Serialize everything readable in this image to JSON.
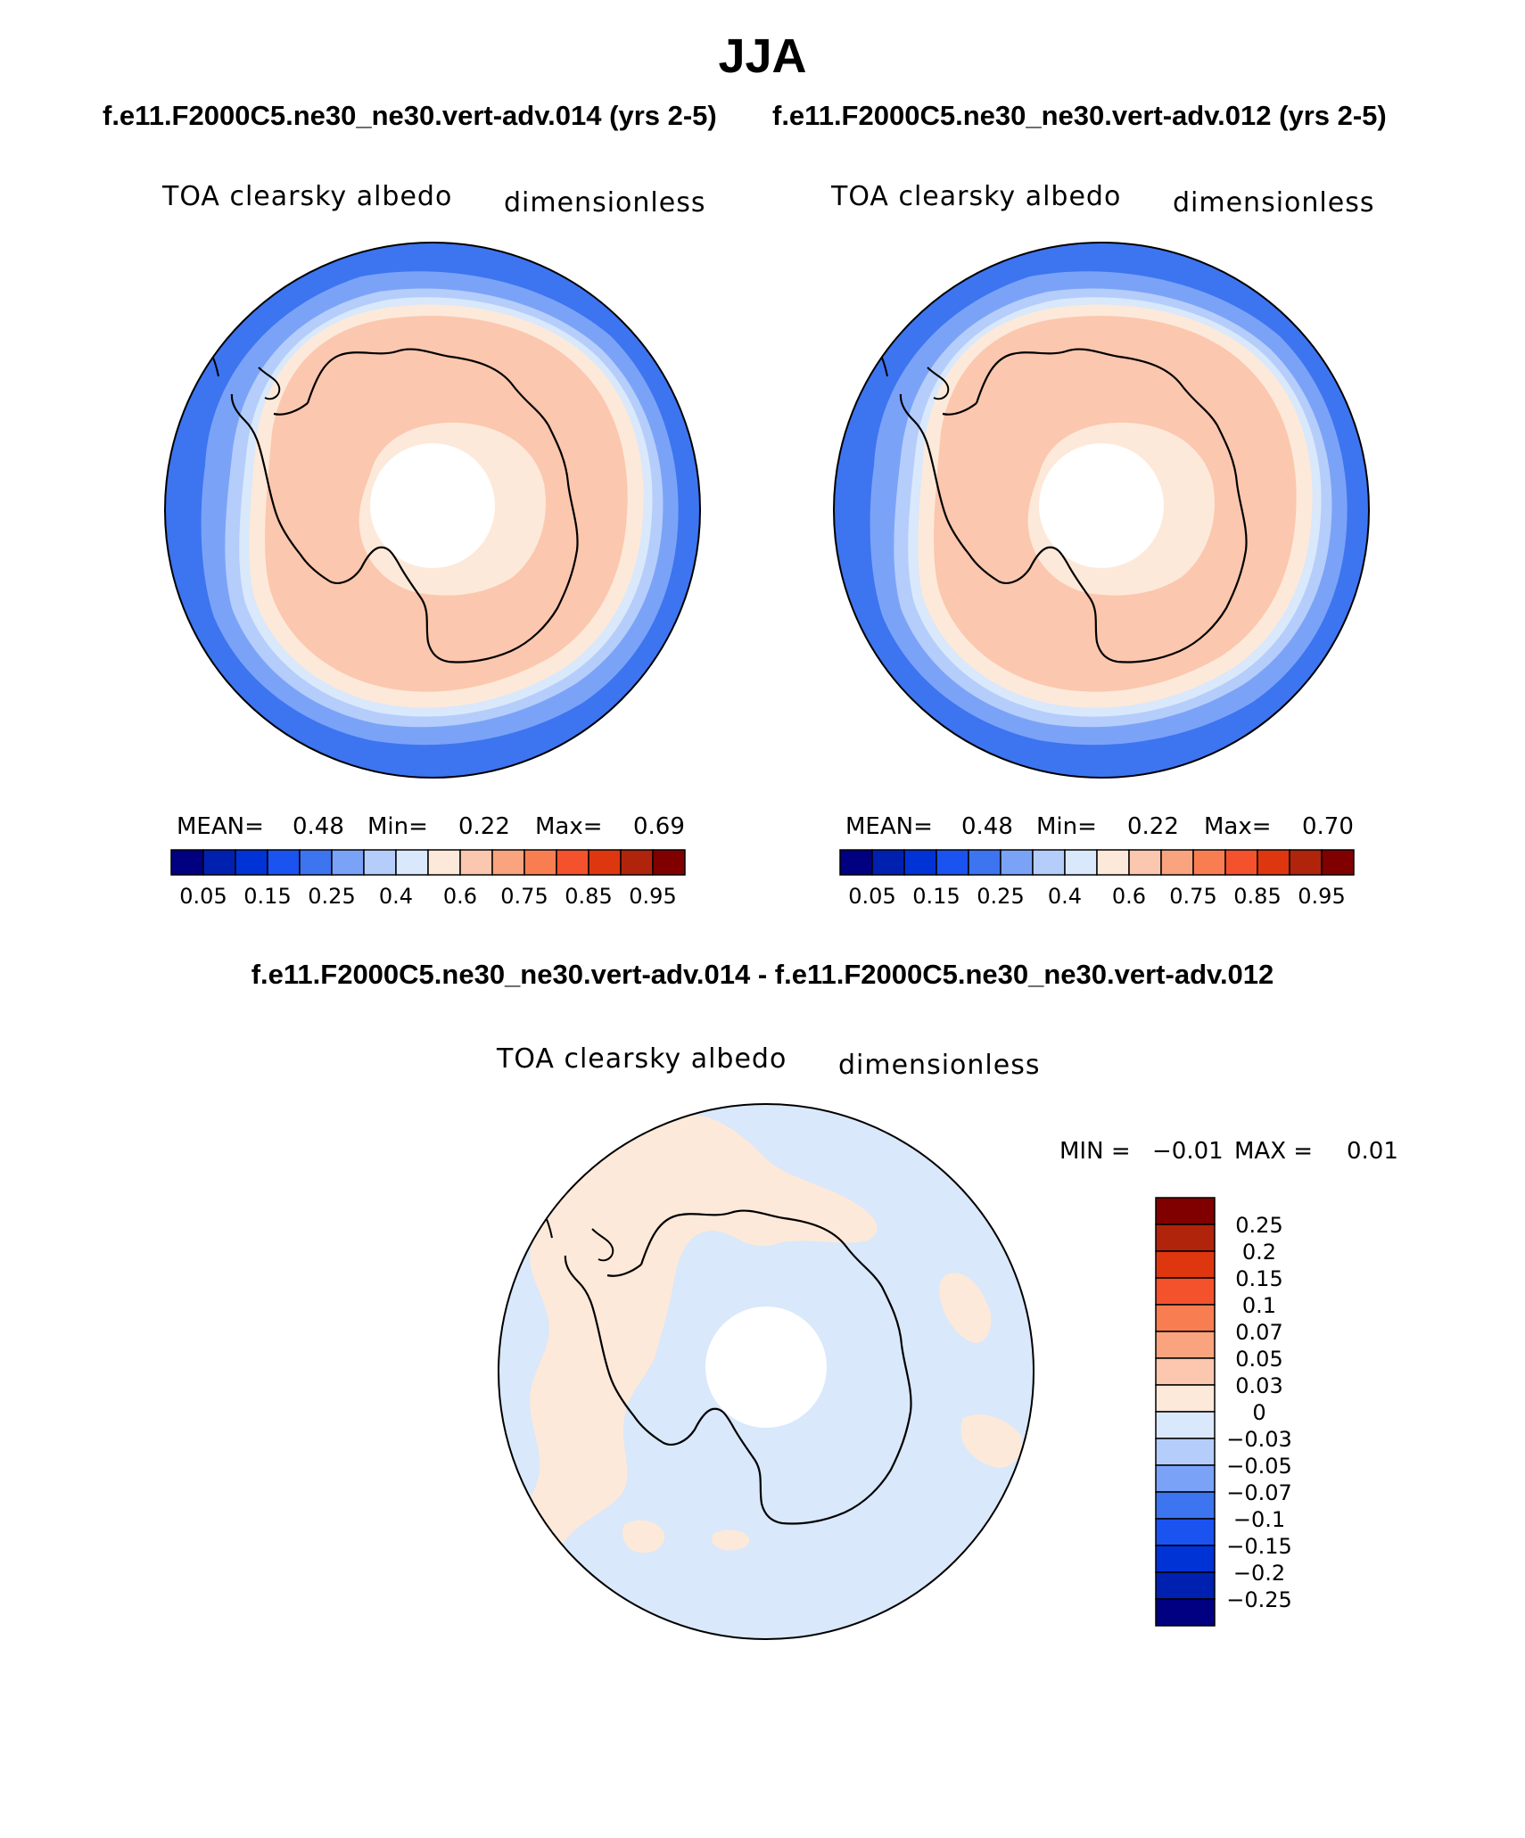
{
  "figure": {
    "season": "JJA",
    "case_left": "f.e11.F2000C5.ne30_ne30.vert-adv.014 (yrs 2-5)",
    "case_right": "f.e11.F2000C5.ne30_ne30.vert-adv.012 (yrs 2-5)",
    "diff_title": "f.e11.F2000C5.ne30_ne30.vert-adv.014 - f.e11.F2000C5.ne30_ne30.vert-adv.012"
  },
  "panels": {
    "left": {
      "variable": "TOA clearsky albedo",
      "units": "dimensionless",
      "mean_label": "MEAN=",
      "mean": "0.48",
      "min_label": "Min=",
      "min": "0.22",
      "max_label": "Max=",
      "max": "0.69"
    },
    "right": {
      "variable": "TOA clearsky albedo",
      "units": "dimensionless",
      "mean_label": "MEAN=",
      "mean": "0.48",
      "min_label": "Min=",
      "min": "0.22",
      "max_label": "Max=",
      "max": "0.70"
    },
    "diff": {
      "variable": "TOA clearsky albedo",
      "units": "dimensionless",
      "min_label": "MIN =",
      "min": "−0.01",
      "max_label": "MAX =",
      "max": "0.01"
    }
  },
  "colorbars": {
    "main": {
      "colors": [
        "#000080",
        "#0021b0",
        "#0033d6",
        "#1a53f0",
        "#3d74f0",
        "#7aa3f8",
        "#b5cdfa",
        "#d9e8fb",
        "#fde9d9",
        "#fbc7ae",
        "#f9a47f",
        "#f87e52",
        "#f3522d",
        "#de3710",
        "#b0240b",
        "#800000"
      ],
      "labels": [
        "0.05",
        "0.15",
        "0.25",
        "0.4",
        "0.6",
        "0.75",
        "0.85",
        "0.95"
      ]
    },
    "diff": {
      "colors_top_to_bottom": [
        "#800000",
        "#b0240b",
        "#de3710",
        "#f3522d",
        "#f87e52",
        "#f9a47f",
        "#fbc7ae",
        "#fde9d9",
        "#d9e8fb",
        "#b5cdfa",
        "#7aa3f8",
        "#3d74f0",
        "#1a53f0",
        "#0033d6",
        "#0021b0",
        "#000080"
      ],
      "labels_top_to_bottom": [
        "0.25",
        "0.2",
        "0.15",
        "0.1",
        "0.07",
        "0.05",
        "0.03",
        "0",
        "−0.03",
        "−0.05",
        "−0.07",
        "−0.1",
        "−0.15",
        "−0.2",
        "−0.25"
      ]
    }
  }
}
